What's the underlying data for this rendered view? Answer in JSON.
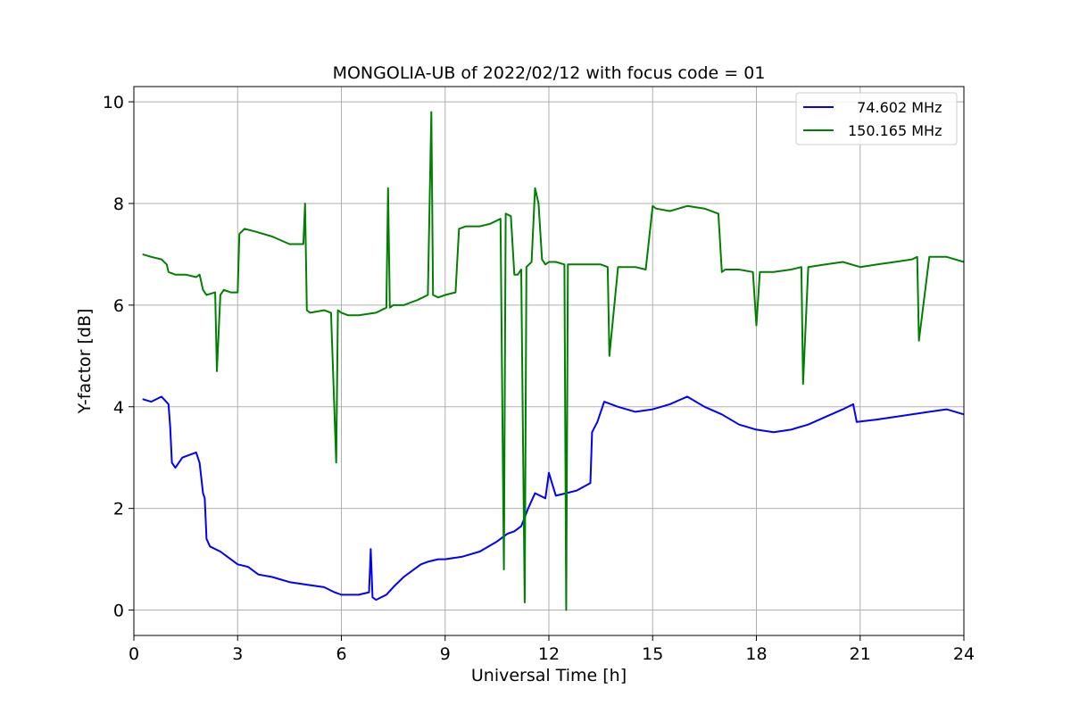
{
  "chart_data": {
    "type": "line",
    "title": "MONGOLIA-UB of 2022/02/12 with focus code = 01",
    "xlabel": "Universal Time [h]",
    "ylabel": "Y-factor [dB]",
    "xlim": [
      0,
      24
    ],
    "ylim": [
      -0.5,
      10.3
    ],
    "xticks": [
      0,
      3,
      6,
      9,
      12,
      15,
      18,
      21,
      24
    ],
    "xtick_labels": [
      "0",
      "3",
      "6",
      "9",
      "12",
      "15",
      "18",
      "21",
      "24"
    ],
    "yticks": [
      0,
      2,
      4,
      6,
      8,
      10
    ],
    "ytick_labels": [
      "0",
      "2",
      "4",
      "6",
      "8",
      "10"
    ],
    "grid": true,
    "legend_position": "top-right",
    "series": [
      {
        "name": "  74.602 MHz",
        "color": "#0000ff",
        "x": [
          0.25,
          0.5,
          0.8,
          1.0,
          1.05,
          1.1,
          1.2,
          1.4,
          1.6,
          1.8,
          1.9,
          2.0,
          2.05,
          2.1,
          2.2,
          2.5,
          3.0,
          3.3,
          3.5,
          3.6,
          4.0,
          4.5,
          5.0,
          5.5,
          5.8,
          6.0,
          6.5,
          6.8,
          6.85,
          6.9,
          7.0,
          7.3,
          7.5,
          7.8,
          8.0,
          8.3,
          8.5,
          8.8,
          9.0,
          9.5,
          10.0,
          10.5,
          10.8,
          11.0,
          11.2,
          11.4,
          11.6,
          11.9,
          12.0,
          12.2,
          12.5,
          12.8,
          13.2,
          13.25,
          13.4,
          13.6,
          14.0,
          14.5,
          15.0,
          15.5,
          16.0,
          16.5,
          17.0,
          17.5,
          18.0,
          18.5,
          19.0,
          19.5,
          20.0,
          20.5,
          20.8,
          20.9,
          21.5,
          22.0,
          22.5,
          23.0,
          23.5,
          24.0
        ],
        "y": [
          4.15,
          4.1,
          4.2,
          4.05,
          3.6,
          2.9,
          2.8,
          3.0,
          3.05,
          3.1,
          2.9,
          2.3,
          2.2,
          1.4,
          1.25,
          1.15,
          0.9,
          0.85,
          0.75,
          0.7,
          0.65,
          0.55,
          0.5,
          0.45,
          0.35,
          0.3,
          0.3,
          0.35,
          1.2,
          0.25,
          0.2,
          0.3,
          0.45,
          0.65,
          0.75,
          0.9,
          0.95,
          1.0,
          1.0,
          1.05,
          1.15,
          1.35,
          1.5,
          1.55,
          1.65,
          2.0,
          2.3,
          2.2,
          2.7,
          2.25,
          2.3,
          2.35,
          2.5,
          3.5,
          3.7,
          4.1,
          4.0,
          3.9,
          3.95,
          4.05,
          4.2,
          4.0,
          3.85,
          3.65,
          3.55,
          3.5,
          3.55,
          3.65,
          3.8,
          3.95,
          4.05,
          3.7,
          3.75,
          3.8,
          3.85,
          3.9,
          3.95,
          3.85
        ]
      },
      {
        "name": "150.165 MHz",
        "color": "#008000",
        "x": [
          0.25,
          0.5,
          0.8,
          0.95,
          1.0,
          1.2,
          1.5,
          1.8,
          1.9,
          2.0,
          2.1,
          2.35,
          2.4,
          2.5,
          2.6,
          2.8,
          3.0,
          3.05,
          3.2,
          3.5,
          4.0,
          4.5,
          4.9,
          4.95,
          5.0,
          5.1,
          5.5,
          5.7,
          5.85,
          5.9,
          6.0,
          6.2,
          6.5,
          7.0,
          7.3,
          7.35,
          7.4,
          7.5,
          7.8,
          8.0,
          8.2,
          8.5,
          8.6,
          8.65,
          8.8,
          9.0,
          9.3,
          9.4,
          9.6,
          10.0,
          10.3,
          10.6,
          10.7,
          10.75,
          10.9,
          11.0,
          11.1,
          11.2,
          11.3,
          11.35,
          11.5,
          11.6,
          11.7,
          11.8,
          11.9,
          12.0,
          12.2,
          12.45,
          12.5,
          12.55,
          12.8,
          13.0,
          13.5,
          13.7,
          13.75,
          14.0,
          14.5,
          14.8,
          15.0,
          15.1,
          15.5,
          16.0,
          16.5,
          16.9,
          17.0,
          17.1,
          17.5,
          17.9,
          18.0,
          18.1,
          18.5,
          19.0,
          19.3,
          19.35,
          19.5,
          20.0,
          20.5,
          21.0,
          21.5,
          22.0,
          22.5,
          22.65,
          22.7,
          23.0,
          23.5,
          24.0
        ],
        "y": [
          7.0,
          6.95,
          6.9,
          6.8,
          6.65,
          6.6,
          6.6,
          6.55,
          6.6,
          6.3,
          6.2,
          6.25,
          4.7,
          6.2,
          6.3,
          6.25,
          6.25,
          7.4,
          7.5,
          7.45,
          7.35,
          7.2,
          7.2,
          8.0,
          5.9,
          5.85,
          5.9,
          5.85,
          2.9,
          5.9,
          5.85,
          5.8,
          5.8,
          5.85,
          5.95,
          8.3,
          5.95,
          6.0,
          6.0,
          6.05,
          6.1,
          6.2,
          9.8,
          6.2,
          6.15,
          6.2,
          6.25,
          7.5,
          7.55,
          7.55,
          7.6,
          7.7,
          0.8,
          7.8,
          7.75,
          6.6,
          6.6,
          6.7,
          0.15,
          6.75,
          6.85,
          8.3,
          8.0,
          6.9,
          6.8,
          6.85,
          6.85,
          6.8,
          0.0,
          6.8,
          6.8,
          6.8,
          6.8,
          6.75,
          5.0,
          6.75,
          6.75,
          6.7,
          7.95,
          7.9,
          7.85,
          7.95,
          7.9,
          7.8,
          6.65,
          6.7,
          6.7,
          6.65,
          5.6,
          6.65,
          6.65,
          6.7,
          6.75,
          4.45,
          6.75,
          6.8,
          6.85,
          6.75,
          6.8,
          6.85,
          6.9,
          6.95,
          5.3,
          6.95,
          6.95,
          6.85
        ]
      }
    ]
  }
}
